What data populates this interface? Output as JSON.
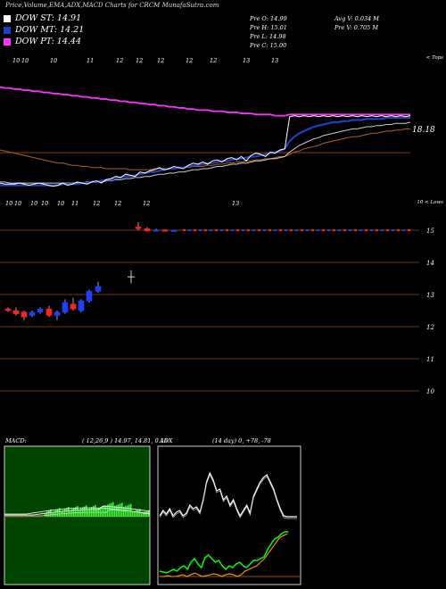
{
  "header": {
    "title": "Price,Volume,EMA,ADX,MACD Charts for CRCM MunafaSutra.com"
  },
  "legend": [
    {
      "label": "DOW ST: 14.91",
      "color": "#ffffff"
    },
    {
      "label": "DOW MT: 14.21",
      "color": "#1f3fbf"
    },
    {
      "label": "DOW PT: 14.44",
      "color": "#ff33ff"
    }
  ],
  "stats": {
    "open": "Pre O: 14.99",
    "high": "Pre H: 15.01",
    "low": "Pre L: 14.98",
    "close": "Pre C: 15.00",
    "avg_vol": "Avg V: 0.034 M",
    "pre_vol": "Pre V: 0.705 M"
  },
  "colors": {
    "price": "#ffffff",
    "ema_short": "#1f3fbf",
    "ema_long": "#ff33ff",
    "ema_mid": "#cccccc",
    "ema_slow": "#b06020",
    "bull": "#1f3fff",
    "bear": "#ff2020",
    "macd_hist": "#33ff33",
    "adx_green": "#00ff00",
    "adx_orange": "#ff9900",
    "hline": "#9a4a10"
  },
  "chart_data": [
    {
      "type": "line",
      "name": "price-ema-panel",
      "top_right_label": "< Tops",
      "price_label": "18.18",
      "date_ticks": [
        "10",
        "10",
        "10",
        "11",
        "12",
        "12",
        "12",
        "12",
        "12",
        "13",
        "13"
      ],
      "close": [
        10.8,
        10.7,
        10.7,
        10.7,
        10.8,
        10.7,
        10.6,
        10.7,
        10.8,
        10.7,
        10.6,
        10.5,
        10.6,
        10.8,
        10.6,
        10.7,
        10.9,
        10.8,
        10.7,
        10.9,
        11.0,
        10.8,
        11.1,
        11.2,
        11.4,
        11.3,
        11.6,
        11.5,
        11.4,
        11.8,
        11.7,
        11.9,
        12.0,
        12.2,
        12.0,
        12.1,
        12.3,
        12.2,
        12.1,
        12.4,
        12.6,
        12.5,
        12.7,
        12.5,
        12.8,
        12.9,
        12.7,
        13.0,
        13.1,
        12.9,
        13.2,
        12.8,
        13.3,
        13.5,
        13.4,
        13.2,
        13.6,
        13.5,
        13.8,
        13.9,
        16.8,
        16.9,
        16.8,
        16.9,
        16.8,
        16.9,
        16.8,
        16.9,
        16.8,
        16.9,
        16.8,
        16.9,
        16.8,
        16.9,
        16.8,
        16.9,
        16.8,
        16.9,
        16.8,
        16.9,
        16.8,
        16.9,
        16.8,
        16.9,
        16.8,
        16.9
      ],
      "ema_short": [
        10.6,
        10.6,
        10.6,
        10.6,
        10.6,
        10.6,
        10.6,
        10.6,
        10.6,
        10.6,
        10.6,
        10.6,
        10.6,
        10.7,
        10.7,
        10.7,
        10.7,
        10.8,
        10.8,
        10.9,
        10.9,
        11.0,
        11.1,
        11.1,
        11.2,
        11.3,
        11.4,
        11.4,
        11.5,
        11.6,
        11.7,
        11.8,
        11.8,
        11.9,
        12.0,
        12.1,
        12.1,
        12.2,
        12.2,
        12.3,
        12.4,
        12.4,
        12.5,
        12.6,
        12.6,
        12.7,
        12.8,
        12.8,
        12.9,
        13.0,
        13.0,
        13.1,
        13.2,
        13.2,
        13.3,
        13.4,
        13.5,
        13.6,
        13.7,
        13.9,
        14.6,
        15.0,
        15.3,
        15.5,
        15.7,
        15.9,
        16.0,
        16.1,
        16.2,
        16.3,
        16.3,
        16.4,
        16.4,
        16.5,
        16.5,
        16.5,
        16.6,
        16.6,
        16.6,
        16.6,
        16.7,
        16.7,
        16.7,
        16.7,
        16.7,
        16.7
      ],
      "ema_long": [
        19.5,
        19.4,
        19.4,
        19.3,
        19.3,
        19.2,
        19.2,
        19.1,
        19.1,
        19.0,
        19.0,
        18.9,
        18.9,
        18.8,
        18.8,
        18.7,
        18.7,
        18.6,
        18.6,
        18.5,
        18.5,
        18.4,
        18.4,
        18.3,
        18.3,
        18.2,
        18.2,
        18.1,
        18.1,
        18.0,
        18.0,
        17.9,
        17.9,
        17.8,
        17.8,
        17.7,
        17.7,
        17.6,
        17.6,
        17.5,
        17.5,
        17.4,
        17.4,
        17.4,
        17.3,
        17.3,
        17.3,
        17.2,
        17.2,
        17.2,
        17.1,
        17.1,
        17.1,
        17.0,
        17.0,
        17.0,
        17.0,
        16.9,
        16.9,
        16.9,
        17.0,
        17.0,
        17.0,
        17.0,
        17.0,
        17.0,
        17.0,
        17.0,
        17.0,
        17.0,
        17.0,
        17.0,
        17.0,
        17.0,
        17.0,
        17.0,
        17.0,
        17.0,
        17.0,
        17.0,
        17.0,
        17.0,
        17.0,
        17.0,
        17.0,
        17.0
      ],
      "ema_mid": [
        10.9,
        10.9,
        10.8,
        10.8,
        10.8,
        10.8,
        10.8,
        10.8,
        10.8,
        10.8,
        10.8,
        10.8,
        10.8,
        10.8,
        10.8,
        10.8,
        10.8,
        10.8,
        10.9,
        10.9,
        10.9,
        10.9,
        11.0,
        11.0,
        11.1,
        11.1,
        11.2,
        11.2,
        11.3,
        11.3,
        11.4,
        11.4,
        11.5,
        11.6,
        11.6,
        11.7,
        11.7,
        11.8,
        11.8,
        11.9,
        12.0,
        12.0,
        12.1,
        12.1,
        12.2,
        12.3,
        12.3,
        12.4,
        12.5,
        12.5,
        12.6,
        12.6,
        12.7,
        12.8,
        12.8,
        12.9,
        13.0,
        13.0,
        13.1,
        13.2,
        13.6,
        13.9,
        14.2,
        14.4,
        14.6,
        14.8,
        14.9,
        15.1,
        15.2,
        15.3,
        15.4,
        15.5,
        15.6,
        15.7,
        15.7,
        15.8,
        15.9,
        15.9,
        16.0,
        16.0,
        16.1,
        16.1,
        16.2,
        16.2,
        16.2,
        16.3
      ],
      "ema_slow": [
        13.8,
        13.7,
        13.6,
        13.5,
        13.4,
        13.3,
        13.2,
        13.1,
        13.0,
        12.9,
        12.8,
        12.7,
        12.6,
        12.6,
        12.5,
        12.4,
        12.4,
        12.3,
        12.3,
        12.2,
        12.2,
        12.2,
        12.1,
        12.1,
        12.1,
        12.1,
        12.1,
        12.0,
        12.0,
        12.0,
        12.0,
        12.0,
        12.1,
        12.1,
        12.1,
        12.1,
        12.1,
        12.2,
        12.2,
        12.2,
        12.3,
        12.3,
        12.3,
        12.4,
        12.4,
        12.5,
        12.5,
        12.6,
        12.6,
        12.7,
        12.7,
        12.8,
        12.8,
        12.9,
        12.9,
        13.0,
        13.0,
        13.1,
        13.2,
        13.2,
        13.4,
        13.6,
        13.7,
        13.9,
        14.0,
        14.1,
        14.2,
        14.4,
        14.5,
        14.6,
        14.7,
        14.8,
        14.9,
        15.0,
        15.0,
        15.1,
        15.2,
        15.3,
        15.3,
        15.4,
        15.5,
        15.5,
        15.6,
        15.6,
        15.7,
        15.7
      ]
    },
    {
      "type": "bar",
      "name": "candle-panel",
      "top_right_label": "10 < Lows",
      "date_ticks": [
        "10",
        "10",
        "10",
        "10",
        "10",
        "11",
        "12",
        "12",
        "12",
        "13"
      ],
      "ylim": [
        10,
        15
      ],
      "y_ticks": [
        "15",
        "14",
        "13",
        "12",
        "11",
        "10"
      ],
      "candles": [
        {
          "o": 12.55,
          "c": 12.5,
          "h": 12.6,
          "l": 12.45
        },
        {
          "o": 12.5,
          "c": 12.4,
          "h": 12.6,
          "l": 12.35
        },
        {
          "o": 12.45,
          "c": 12.3,
          "h": 12.5,
          "l": 12.2
        },
        {
          "o": 12.35,
          "c": 12.45,
          "h": 12.5,
          "l": 12.3
        },
        {
          "o": 12.45,
          "c": 12.55,
          "h": 12.6,
          "l": 12.4
        },
        {
          "o": 12.55,
          "c": 12.35,
          "h": 12.65,
          "l": 12.3
        },
        {
          "o": 12.35,
          "c": 12.45,
          "h": 12.5,
          "l": 12.2
        },
        {
          "o": 12.45,
          "c": 12.75,
          "h": 12.85,
          "l": 12.4
        },
        {
          "o": 12.7,
          "c": 12.55,
          "h": 12.9,
          "l": 12.5
        },
        {
          "o": 12.5,
          "c": 12.8,
          "h": 12.85,
          "l": 12.45
        },
        {
          "o": 12.8,
          "c": 13.1,
          "h": 13.15,
          "l": 12.75
        },
        {
          "o": 13.1,
          "c": 13.25,
          "h": 13.4,
          "l": 13.05
        },
        {
          "o": 15.1,
          "c": 15.05,
          "h": 15.25,
          "l": 15.0
        },
        {
          "o": 15.05,
          "c": 14.98,
          "h": 15.1,
          "l": 14.95
        },
        {
          "o": 14.98,
          "c": 15.01,
          "h": 15.05,
          "l": 14.96
        },
        {
          "o": 15.01,
          "c": 14.99,
          "h": 15.03,
          "l": 14.97
        },
        {
          "o": 14.99,
          "c": 15.0,
          "h": 15.01,
          "l": 14.98
        }
      ]
    },
    {
      "type": "bar",
      "name": "macd-panel",
      "label": "MACD:",
      "params": "( 12,26,9 ) 14.97, 14.81, 0.16"
    },
    {
      "type": "line",
      "name": "adx-panel",
      "label": "ADX",
      "params": "(14 day) 0, +78, -78"
    }
  ]
}
